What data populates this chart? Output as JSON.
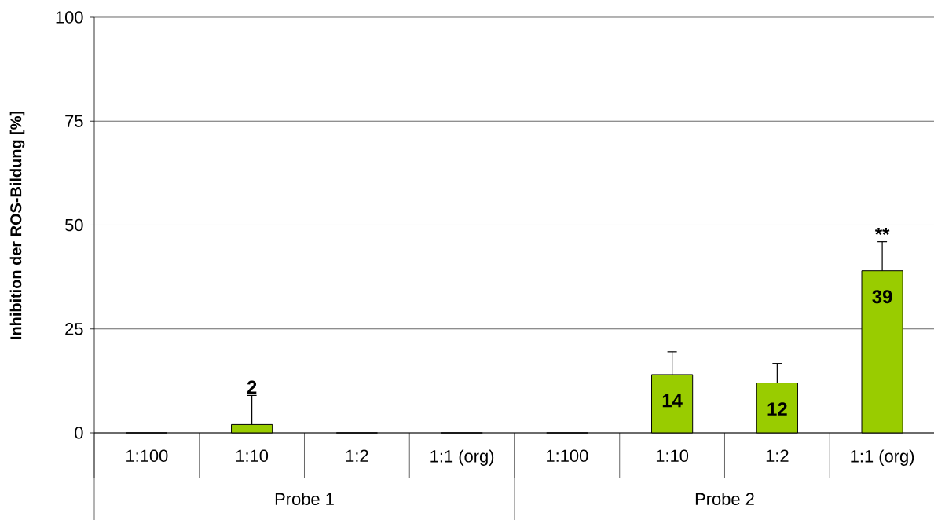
{
  "chart_data": {
    "type": "bar",
    "ylabel": "Inhibition der ROS-Bildung [%]",
    "categories": [
      "1:100",
      "1:10",
      "1:2",
      "1:1 (org)",
      "1:100",
      "1:10",
      "1:2",
      "1:1 (org)"
    ],
    "values": [
      0,
      2,
      0,
      0,
      0,
      14,
      12,
      39
    ],
    "color": "#99cc00",
    "errors": [
      null,
      7,
      null,
      null,
      null,
      5.5,
      4.7,
      7
    ],
    "value_labels": [
      null,
      "2",
      null,
      null,
      null,
      "14",
      "12",
      "39"
    ],
    "ylim": [
      0,
      100
    ],
    "yticks": [
      0,
      25,
      50,
      75,
      100
    ],
    "grid": "y",
    "annotations": [
      "**",
      "Probe 1",
      "Probe 2"
    ]
  }
}
